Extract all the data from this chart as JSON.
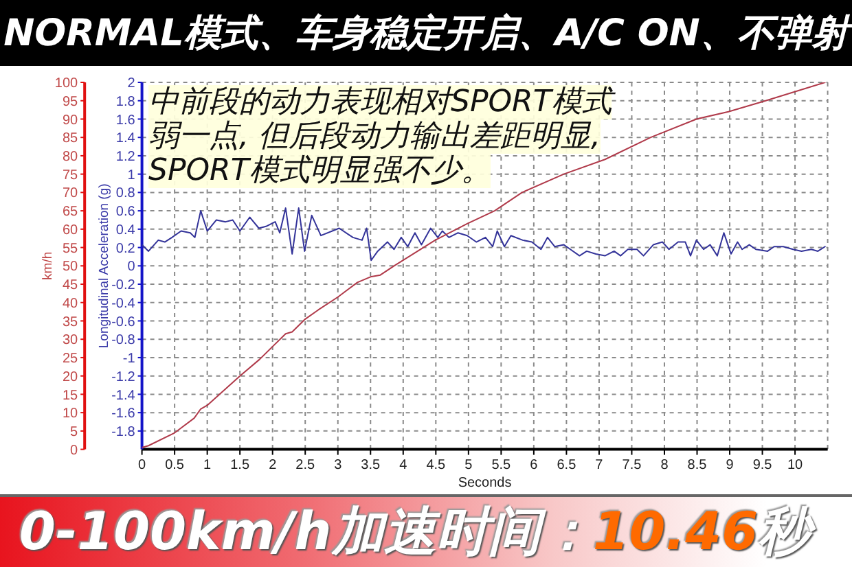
{
  "chart_data": {
    "type": "line",
    "title": "NORMAL模式、车身稳定开启、A/C ON、不弹射",
    "xlabel": "Seconds",
    "ylabel": "Longitudinal Acceleration (g)",
    "y2label": "km/h",
    "annotations": [
      "中前段的动力表现相对SPORT模式弱一点, 但后段动力输出差距明显, SPORT模式明显强不少。",
      "0-100km/h加速时间：10.46秒"
    ],
    "xlim": [
      0,
      10.5
    ],
    "xticks": [
      0,
      0.5,
      1,
      1.5,
      2,
      2.5,
      3,
      3.5,
      4,
      4.5,
      5,
      5.5,
      6,
      6.5,
      7,
      7.5,
      8,
      8.5,
      9,
      9.5,
      10
    ],
    "ylim": [
      -2,
      2
    ],
    "yticks": [
      -1.8,
      -1.6,
      -1.4,
      -1.2,
      -1,
      -0.8,
      -0.6,
      -0.4,
      -0.2,
      0,
      0.2,
      0.4,
      0.6,
      0.8,
      1,
      1.2,
      1.4,
      1.6,
      1.8,
      2
    ],
    "y2lim": [
      0,
      100
    ],
    "y2ticks": [
      0,
      5,
      10,
      15,
      20,
      25,
      30,
      35,
      40,
      45,
      50,
      55,
      60,
      65,
      70,
      75,
      80,
      85,
      90,
      95,
      100
    ],
    "grid": true,
    "marker": "none",
    "series": [
      {
        "color": "#333399",
        "x": [
          0,
          0.1,
          0.25,
          0.35,
          0.46,
          0.6,
          0.74,
          0.81,
          0.9,
          1.0,
          1.14,
          1.28,
          1.39,
          1.5,
          1.65,
          1.79,
          1.9,
          2.04,
          2.11,
          2.2,
          2.3,
          2.4,
          2.49,
          2.6,
          2.74,
          3.02,
          3.23,
          3.37,
          3.44,
          3.51,
          3.61,
          3.76,
          3.86,
          3.97,
          4.07,
          4.18,
          4.28,
          4.42,
          4.53,
          4.6,
          4.7,
          4.84,
          4.98,
          5.12,
          5.26,
          5.37,
          5.44,
          5.55,
          5.65,
          5.83,
          5.97,
          6.11,
          6.21,
          6.32,
          6.46,
          6.56,
          6.7,
          6.81,
          6.95,
          7.09,
          7.23,
          7.33,
          7.44,
          7.58,
          7.68,
          7.83,
          7.97,
          8.07,
          8.21,
          8.32,
          8.4,
          8.49,
          8.6,
          8.7,
          8.81,
          8.91,
          9.02,
          9.12,
          9.19,
          9.3,
          9.4,
          9.58,
          9.68,
          9.82,
          9.97,
          10.1,
          10.25,
          10.35,
          10.46
        ],
        "values": [
          0.23,
          0.16,
          0.28,
          0.26,
          0.31,
          0.38,
          0.36,
          0.31,
          0.6,
          0.38,
          0.5,
          0.48,
          0.5,
          0.38,
          0.53,
          0.41,
          0.43,
          0.48,
          0.36,
          0.63,
          0.13,
          0.63,
          0.16,
          0.55,
          0.33,
          0.41,
          0.31,
          0.28,
          0.41,
          0.06,
          0.16,
          0.26,
          0.18,
          0.31,
          0.21,
          0.36,
          0.23,
          0.41,
          0.31,
          0.38,
          0.31,
          0.36,
          0.33,
          0.26,
          0.31,
          0.21,
          0.38,
          0.21,
          0.33,
          0.28,
          0.26,
          0.18,
          0.31,
          0.21,
          0.23,
          0.18,
          0.11,
          0.16,
          0.13,
          0.11,
          0.16,
          0.11,
          0.18,
          0.18,
          0.11,
          0.23,
          0.26,
          0.18,
          0.26,
          0.26,
          0.11,
          0.28,
          0.18,
          0.23,
          0.11,
          0.36,
          0.13,
          0.26,
          0.18,
          0.23,
          0.18,
          0.16,
          0.21,
          0.21,
          0.18,
          0.16,
          0.18,
          0.16,
          0.21
        ]
      },
      {
        "color": "#b03a4a",
        "axis": "y2",
        "x": [
          0,
          0.1,
          0.5,
          0.8,
          0.9,
          1,
          1.5,
          1.8,
          2,
          2.2,
          2.3,
          2.5,
          2.7,
          3,
          3.3,
          3.5,
          3.65,
          3.86,
          4.49,
          4.98,
          5.4,
          5.82,
          6.46,
          7.09,
          7.79,
          8.49,
          8.98,
          9.55,
          10.46
        ],
        "values": [
          0.5,
          1,
          4.5,
          8.5,
          11,
          12,
          20,
          24.5,
          28,
          31.5,
          32,
          35.5,
          38,
          41.5,
          45.5,
          47,
          47.5,
          50,
          57,
          61.5,
          65,
          70,
          75,
          79,
          85,
          90,
          92,
          95,
          100
        ]
      }
    ]
  }
}
